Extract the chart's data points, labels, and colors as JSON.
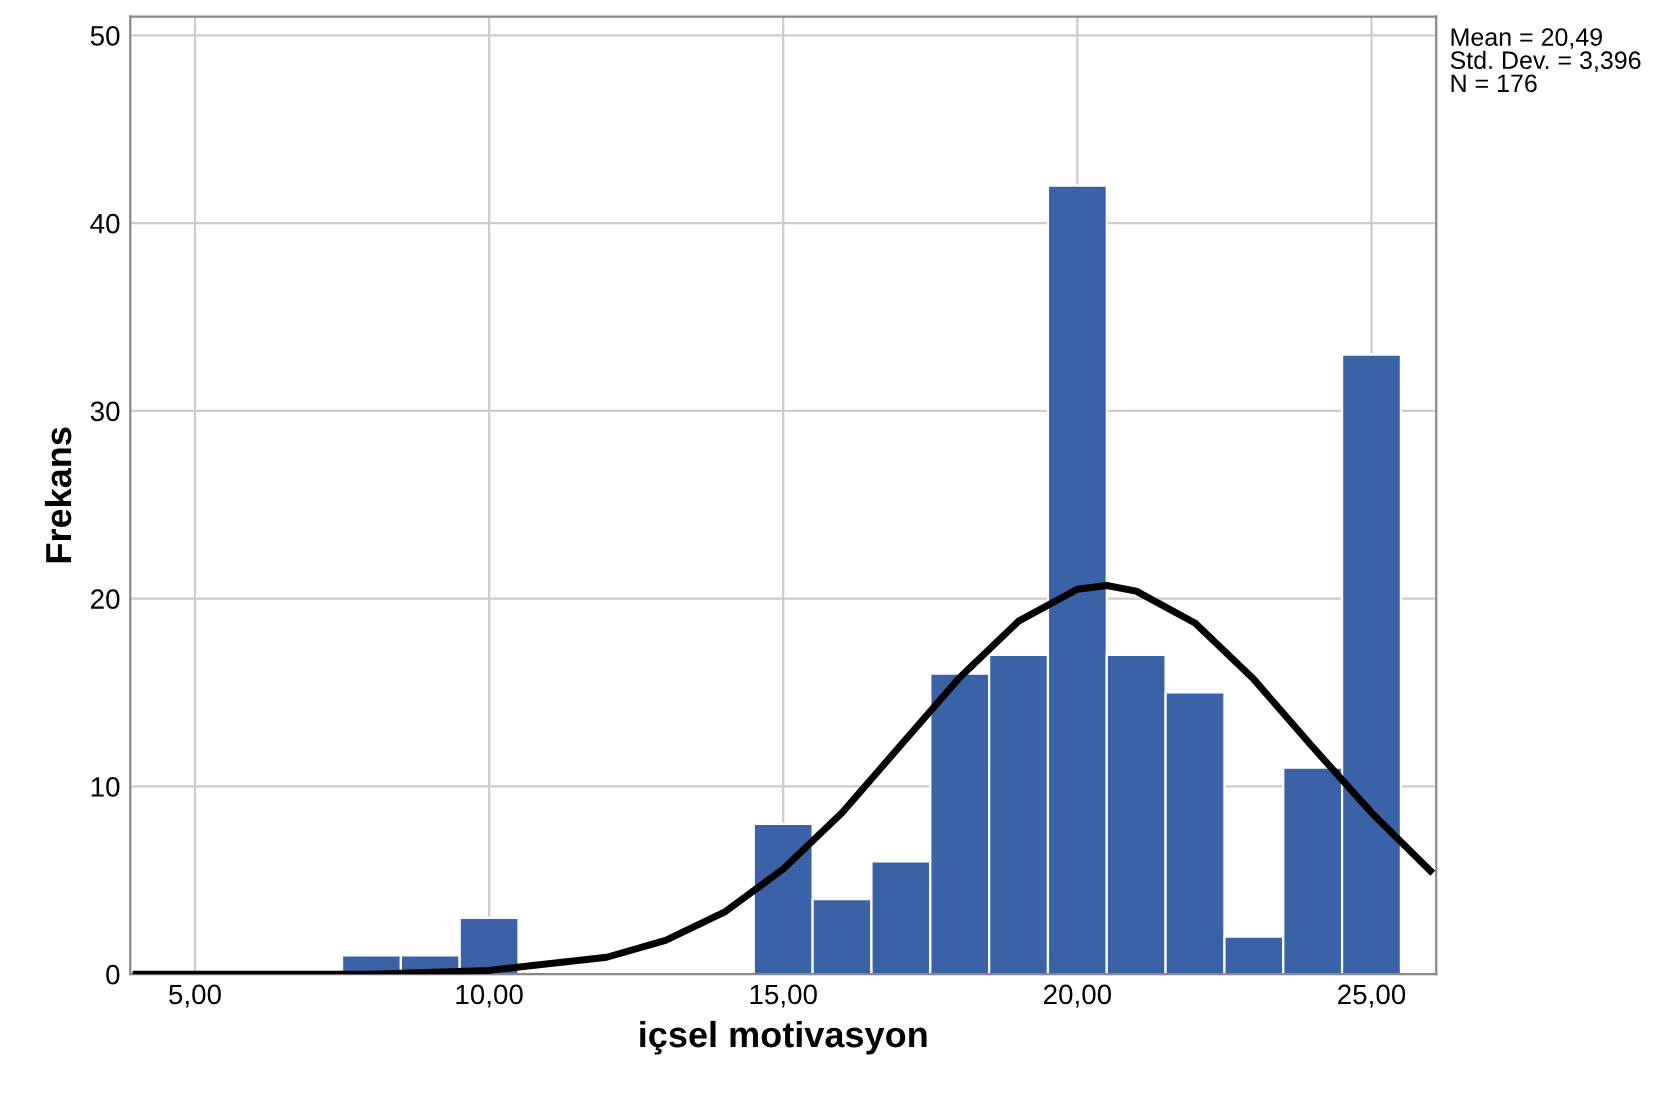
{
  "chart_data": {
    "type": "histogram",
    "xlabel": "içsel motivasyon",
    "ylabel": "Frekans",
    "bins": [
      7.5,
      8.5,
      9.5,
      10.5,
      11.5,
      12.5,
      13.5,
      14.5,
      15.5,
      16.5,
      17.5,
      18.5,
      19.5,
      20.5,
      21.5,
      22.5,
      23.5,
      24.5,
      25.5
    ],
    "values": [
      1,
      1,
      3,
      null,
      null,
      null,
      null,
      8,
      4,
      6,
      16,
      17,
      42,
      17,
      15,
      2,
      11,
      33
    ],
    "color": "#3b62a6",
    "series": [
      {
        "type": "line",
        "color": "#000000",
        "x": [
          4,
          6,
          8,
          10,
          12,
          13,
          14,
          15,
          16,
          17,
          18,
          19,
          20,
          20.5,
          21,
          22,
          23,
          24,
          25,
          26
        ],
        "values": [
          0,
          0,
          0,
          0.2,
          0.9,
          1.8,
          3.3,
          5.6,
          8.6,
          12.2,
          15.8,
          18.8,
          20.5,
          20.7,
          20.4,
          18.7,
          15.7,
          12.1,
          8.6,
          5.5
        ]
      }
    ],
    "xlim": [
      3.9,
      26.1
    ],
    "ylim": [
      0,
      51
    ],
    "xticks": [
      {
        "value": 5,
        "label": "5,00"
      },
      {
        "value": 10,
        "label": "10,00"
      },
      {
        "value": 15,
        "label": "15,00"
      },
      {
        "value": 20,
        "label": "20,00"
      },
      {
        "value": 25,
        "label": "25,00"
      }
    ],
    "yticks": [
      0,
      10,
      20,
      30,
      40,
      50
    ],
    "grid": true,
    "annotations": [
      "Mean = 20,49",
      "Std. Dev. = 3,396",
      "N = 176"
    ]
  }
}
